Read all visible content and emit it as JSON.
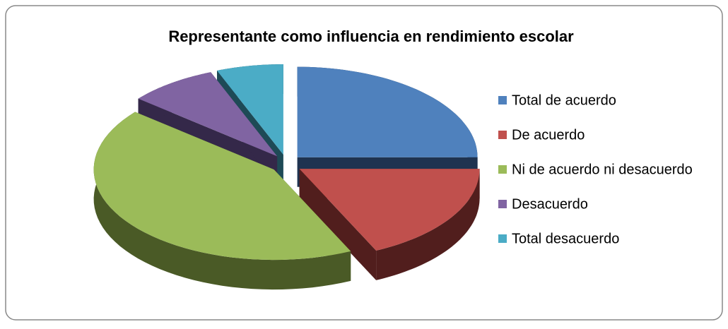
{
  "chart_data": {
    "type": "pie",
    "title": "Representante como influencia en rendimiento escolar",
    "categories": [
      "Total de acuerdo",
      "De acuerdo",
      "Ni de acuerdo ni desacuerdo",
      "Desacuerdo",
      "Total desacuerdo"
    ],
    "values": [
      25,
      18,
      43,
      8,
      6
    ],
    "colors": [
      "#4f81bd",
      "#c0504d",
      "#9bbb59",
      "#8064a2",
      "#4bacc6"
    ],
    "side_colors": [
      "#1f3350",
      "#511e1d",
      "#4a5a26",
      "#342849",
      "#1e4a56"
    ],
    "legend": "right"
  }
}
